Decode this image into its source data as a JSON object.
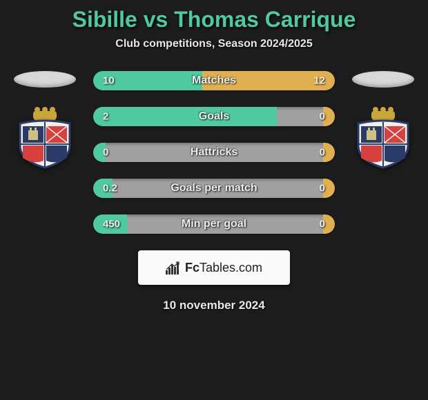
{
  "title": "Sibille vs Thomas Carrique",
  "subtitle": "Club competitions, Season 2024/2025",
  "date": "10 november 2024",
  "brand": {
    "fc": "Fc",
    "tables": "Tables.com"
  },
  "colors": {
    "background": "#1c1c1c",
    "accent_left": "#4ec9a0",
    "accent_right": "#e0b050",
    "bar_bg": "#a0a0a0",
    "title_color": "#4ec9a0",
    "text_color": "#e8e8e8"
  },
  "stats": [
    {
      "label": "Matches",
      "left_val": "10",
      "right_val": "12",
      "left_pct": 45,
      "right_pct": 55
    },
    {
      "label": "Goals",
      "left_val": "2",
      "right_val": "0",
      "left_pct": 76,
      "right_pct": 5
    },
    {
      "label": "Hattricks",
      "left_val": "0",
      "right_val": "0",
      "left_pct": 5,
      "right_pct": 5
    },
    {
      "label": "Goals per match",
      "left_val": "0.2",
      "right_val": "0",
      "left_pct": 8,
      "right_pct": 5
    },
    {
      "label": "Min per goal",
      "left_val": "450",
      "right_val": "0",
      "left_pct": 14,
      "right_pct": 5
    }
  ],
  "crest": {
    "primary": "#2a3b6a",
    "secondary": "#d84040",
    "gold": "#c9a63a",
    "detail": "#d0c080"
  }
}
